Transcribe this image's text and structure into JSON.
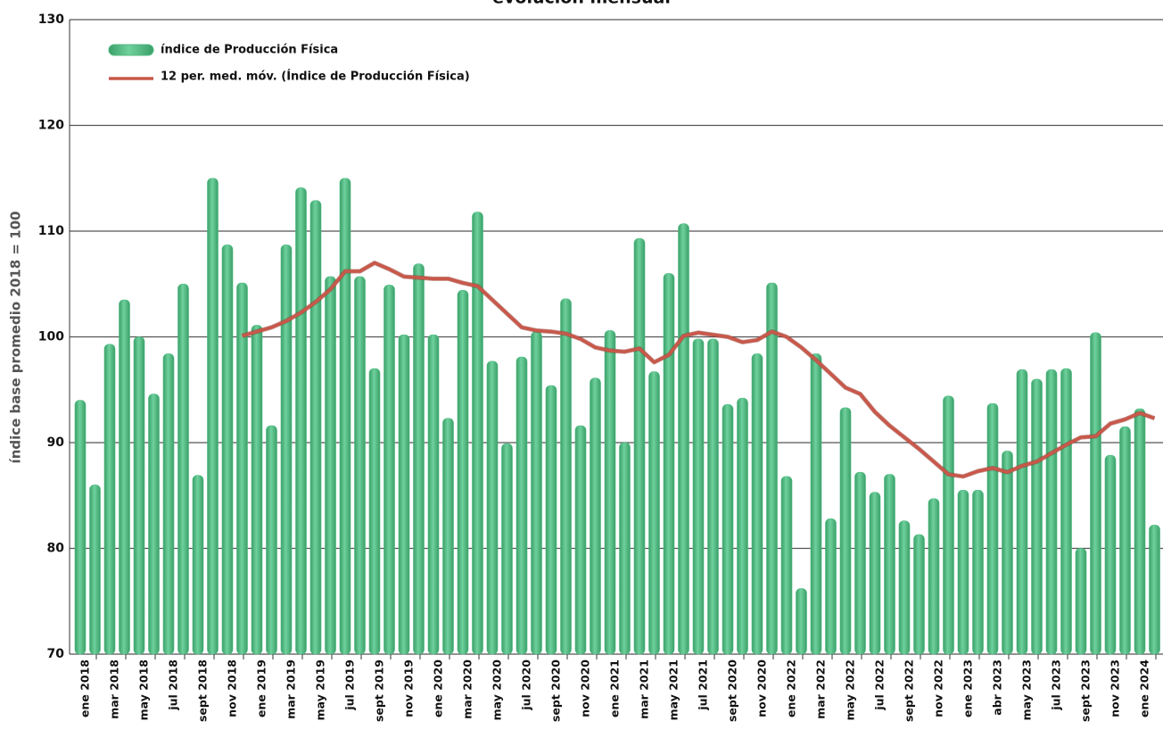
{
  "chart_data": {
    "type": "bar",
    "title": "evolución mensual",
    "y_label": "índice base promedio 2018 = 100",
    "categories": [
      "ene 2018",
      null,
      "mar 2018",
      null,
      "may 2018",
      null,
      "jul 2018",
      null,
      "sept 2018",
      null,
      "nov 2018",
      null,
      "ene 2019",
      null,
      "mar 2019",
      null,
      "may 2019",
      null,
      "jul 2019",
      null,
      "sept 2019",
      null,
      "nov 2019",
      null,
      "ene 2020",
      null,
      "mar 2020",
      null,
      "may 2020",
      null,
      "jul 2020",
      null,
      "sept 2020",
      null,
      "nov 2020",
      null,
      "ene 2021",
      null,
      "mar 2021",
      null,
      "may 2021",
      null,
      "jul 2021",
      null,
      "sept 2020",
      null,
      "nov 2020",
      null,
      "ene 2022",
      null,
      "mar 2022",
      null,
      "may 2022",
      null,
      "jul 2022",
      null,
      "sept 2022",
      null,
      "nov 2022",
      null,
      "ene 2023",
      null,
      "abr 2023",
      null,
      "may 2023",
      null,
      "jul 2023",
      null,
      "sept 2023",
      null,
      "nov 2023",
      null,
      "ene 2024",
      null
    ],
    "series": [
      {
        "name": "índice de Producción Física",
        "type": "bar",
        "color": "#4dba80",
        "values": [
          94,
          86,
          99.3,
          103.5,
          100,
          94.6,
          98.4,
          105,
          86.9,
          115,
          108.7,
          105.1,
          101.1,
          91.6,
          108.7,
          114.1,
          112.9,
          105.7,
          115,
          105.7,
          97,
          104.9,
          100.2,
          106.9,
          100.2,
          92.3,
          104.4,
          111.8,
          97.7,
          89.9,
          98.1,
          100.5,
          95.4,
          103.6,
          91.6,
          96.1,
          100.6,
          90,
          109.3,
          96.7,
          106,
          110.7,
          99.8,
          99.8,
          93.6,
          94.2,
          98.4,
          105.1,
          86.8,
          76.2,
          98.4,
          82.8,
          93.3,
          87.2,
          85.3,
          87,
          82.6,
          81.3,
          84.7,
          94.4,
          85.5,
          85.5,
          93.7,
          89.2,
          96.9,
          96,
          96.9,
          97,
          80,
          100.4,
          88.8,
          91.5,
          93.2,
          82.2
        ]
      },
      {
        "name": "12 per. med. móv. (Índice de Producción Física)",
        "type": "line",
        "color": "#c8584a",
        "values": [
          null,
          null,
          null,
          null,
          null,
          null,
          null,
          null,
          null,
          null,
          null,
          100.1,
          100.5,
          100.9,
          101.5,
          102.3,
          103.3,
          104.5,
          106.2,
          106.2,
          107,
          106.4,
          105.7,
          105.6,
          105.5,
          105.5,
          105.1,
          104.8,
          103.5,
          102.2,
          100.9,
          100.6,
          100.5,
          100.3,
          99.8,
          99,
          98.7,
          98.6,
          98.9,
          97.6,
          98.3,
          100.1,
          100.4,
          100.2,
          100,
          99.5,
          99.7,
          100.5,
          100,
          99,
          97.8,
          96.5,
          95.2,
          94.6,
          92.9,
          91.6,
          90.5,
          89.4,
          88.2,
          87,
          86.8,
          87.3,
          87.6,
          87.2,
          87.8,
          88.2,
          89,
          89.8,
          90.5,
          90.6,
          91.8,
          92.2,
          92.8,
          92.3
        ]
      }
    ],
    "ylim": [
      70,
      130
    ],
    "yticks": [
      70,
      80,
      90,
      100,
      110,
      120,
      130
    ],
    "grid": true,
    "legend": "top-left"
  }
}
